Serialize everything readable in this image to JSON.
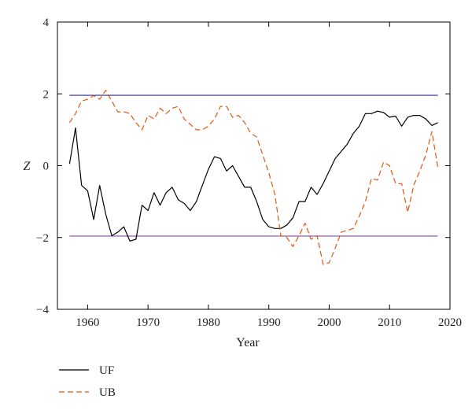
{
  "chart_data": {
    "type": "line",
    "title": "",
    "xlabel": "Year",
    "ylabel": "Z",
    "xlim": [
      1955,
      2020
    ],
    "ylim": [
      -4,
      4
    ],
    "xticks": [
      1960,
      1970,
      1980,
      1990,
      2000,
      2010,
      2020
    ],
    "yticks": [
      -4,
      -2,
      0,
      2,
      4
    ],
    "grid": false,
    "legend_position": "bottom-left, below plot",
    "reference_lines": [
      {
        "y": 1.96,
        "color": "#2b2b8c"
      },
      {
        "y": -1.96,
        "color": "#8e44ad"
      }
    ],
    "series": [
      {
        "name": "UF",
        "style": "solid",
        "color": "#000000",
        "x": [
          1957,
          1958,
          1959,
          1960,
          1961,
          1962,
          1963,
          1964,
          1965,
          1966,
          1967,
          1968,
          1969,
          1970,
          1971,
          1972,
          1973,
          1974,
          1975,
          1976,
          1977,
          1978,
          1979,
          1980,
          1981,
          1982,
          1983,
          1984,
          1985,
          1986,
          1987,
          1988,
          1989,
          1990,
          1991,
          1992,
          1993,
          1994,
          1995,
          1996,
          1997,
          1998,
          1999,
          2000,
          2001,
          2002,
          2003,
          2004,
          2005,
          2006,
          2007,
          2008,
          2009,
          2010,
          2011,
          2012,
          2013,
          2014,
          2015,
          2016,
          2017,
          2018
        ],
        "y": [
          0.05,
          1.05,
          -0.55,
          -0.7,
          -1.5,
          -0.55,
          -1.35,
          -1.95,
          -1.85,
          -1.7,
          -2.1,
          -2.05,
          -1.1,
          -1.25,
          -0.75,
          -1.1,
          -0.75,
          -0.6,
          -0.95,
          -1.05,
          -1.25,
          -1.0,
          -0.55,
          -0.1,
          0.25,
          0.2,
          -0.15,
          0.0,
          -0.3,
          -0.6,
          -0.6,
          -1.0,
          -1.5,
          -1.7,
          -1.75,
          -1.75,
          -1.65,
          -1.45,
          -1.0,
          -1.0,
          -0.6,
          -0.8,
          -0.5,
          -0.15,
          0.2,
          0.4,
          0.6,
          0.9,
          1.1,
          1.45,
          1.45,
          1.52,
          1.48,
          1.35,
          1.38,
          1.1,
          1.35,
          1.4,
          1.4,
          1.3,
          1.12,
          1.2
        ]
      },
      {
        "name": "UB",
        "style": "dashed",
        "color": "#e8540c",
        "x": [
          1957,
          1958,
          1959,
          1960,
          1961,
          1962,
          1963,
          1964,
          1965,
          1966,
          1967,
          1968,
          1969,
          1970,
          1971,
          1972,
          1973,
          1974,
          1975,
          1976,
          1977,
          1978,
          1979,
          1980,
          1981,
          1982,
          1983,
          1984,
          1985,
          1986,
          1987,
          1988,
          1989,
          1990,
          1991,
          1992,
          1993,
          1994,
          1995,
          1996,
          1997,
          1998,
          1999,
          2000,
          2001,
          2002,
          2003,
          2004,
          2005,
          2006,
          2007,
          2008,
          2009,
          2010,
          2011,
          2012,
          2013,
          2014,
          2015,
          2016,
          2017,
          2018
        ],
        "y": [
          1.2,
          1.45,
          1.8,
          1.85,
          1.95,
          1.85,
          2.1,
          1.8,
          1.5,
          1.5,
          1.45,
          1.2,
          1.0,
          1.4,
          1.3,
          1.6,
          1.45,
          1.6,
          1.65,
          1.3,
          1.15,
          1.0,
          1.0,
          1.1,
          1.3,
          1.65,
          1.65,
          1.35,
          1.4,
          1.2,
          0.9,
          0.8,
          0.3,
          -0.2,
          -0.8,
          -1.95,
          -2.0,
          -2.25,
          -1.95,
          -1.6,
          -2.05,
          -1.95,
          -2.75,
          -2.7,
          -2.3,
          -1.85,
          -1.8,
          -1.75,
          -1.4,
          -1.0,
          -0.35,
          -0.4,
          0.1,
          0.0,
          -0.5,
          -0.5,
          -1.3,
          -0.55,
          -0.15,
          0.3,
          0.95,
          -0.05
        ]
      }
    ]
  }
}
